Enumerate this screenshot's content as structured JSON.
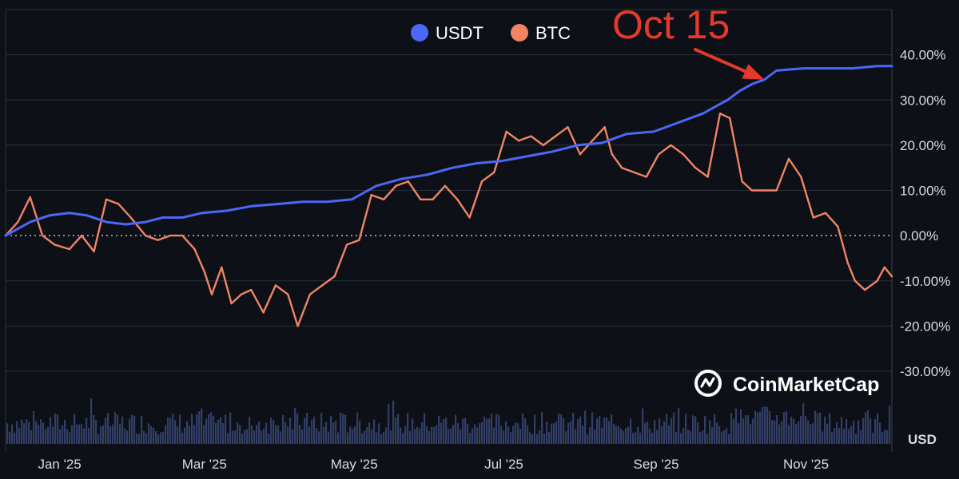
{
  "chart_data": {
    "type": "line",
    "x_ticks": [
      "Jan '25",
      "Mar '25",
      "May '25",
      "Jul '25",
      "Sep '25",
      "Nov '25"
    ],
    "y_ticks": [
      "40.00%",
      "30.00%",
      "20.00%",
      "10.00%",
      "0.00%",
      "-10.00%",
      "-20.00%",
      "-30.00%"
    ],
    "y_tick_values": [
      40,
      30,
      20,
      10,
      0,
      -10,
      -20,
      -30
    ],
    "ylim": [
      -33,
      50
    ],
    "xlim": [
      "2024-12-10",
      "2025-12-06"
    ],
    "unit_label": "USD",
    "grid": true,
    "legend_position": "top-center",
    "series": [
      {
        "name": "USDT",
        "color": "#4c67f5",
        "x": [
          "2024-12-10",
          "2024-12-20",
          "2024-12-28",
          "2025-01-05",
          "2025-01-12",
          "2025-01-20",
          "2025-01-28",
          "2025-02-05",
          "2025-02-12",
          "2025-02-20",
          "2025-02-28",
          "2025-03-10",
          "2025-03-20",
          "2025-03-31",
          "2025-04-10",
          "2025-04-20",
          "2025-04-30",
          "2025-05-10",
          "2025-05-20",
          "2025-05-31",
          "2025-06-10",
          "2025-06-20",
          "2025-06-30",
          "2025-07-10",
          "2025-07-20",
          "2025-07-31",
          "2025-08-10",
          "2025-08-20",
          "2025-08-31",
          "2025-09-10",
          "2025-09-20",
          "2025-09-30",
          "2025-10-05",
          "2025-10-10",
          "2025-10-15",
          "2025-10-20",
          "2025-10-31",
          "2025-11-10",
          "2025-11-20",
          "2025-11-30",
          "2025-12-06"
        ],
        "values": [
          0,
          3,
          4.5,
          5,
          4.5,
          3,
          2.5,
          3,
          4,
          4,
          5,
          5.5,
          6.5,
          7,
          7.5,
          7.5,
          8,
          11,
          12.5,
          13.5,
          15,
          16,
          16.5,
          17.5,
          18.5,
          20,
          20.5,
          22.5,
          23,
          25,
          27,
          30,
          32,
          33.5,
          34.5,
          36.5,
          37,
          37,
          37,
          37.5,
          37.5
        ]
      },
      {
        "name": "BTC",
        "color": "#f08465",
        "x": [
          "2024-12-10",
          "2024-12-15",
          "2024-12-20",
          "2024-12-25",
          "2024-12-30",
          "2025-01-05",
          "2025-01-10",
          "2025-01-15",
          "2025-01-20",
          "2025-01-25",
          "2025-01-30",
          "2025-02-05",
          "2025-02-10",
          "2025-02-15",
          "2025-02-20",
          "2025-02-25",
          "2025-03-01",
          "2025-03-04",
          "2025-03-08",
          "2025-03-12",
          "2025-03-16",
          "2025-03-20",
          "2025-03-25",
          "2025-03-30",
          "2025-04-04",
          "2025-04-08",
          "2025-04-13",
          "2025-04-18",
          "2025-04-23",
          "2025-04-28",
          "2025-05-03",
          "2025-05-08",
          "2025-05-13",
          "2025-05-18",
          "2025-05-23",
          "2025-05-28",
          "2025-06-02",
          "2025-06-07",
          "2025-06-12",
          "2025-06-17",
          "2025-06-22",
          "2025-06-27",
          "2025-07-02",
          "2025-07-07",
          "2025-07-12",
          "2025-07-17",
          "2025-07-22",
          "2025-07-27",
          "2025-08-01",
          "2025-08-06",
          "2025-08-11",
          "2025-08-14",
          "2025-08-18",
          "2025-08-23",
          "2025-08-28",
          "2025-09-02",
          "2025-09-07",
          "2025-09-12",
          "2025-09-17",
          "2025-09-22",
          "2025-09-27",
          "2025-10-01",
          "2025-10-06",
          "2025-10-10",
          "2025-10-15",
          "2025-10-20",
          "2025-10-25",
          "2025-10-30",
          "2025-11-04",
          "2025-11-09",
          "2025-11-14",
          "2025-11-18",
          "2025-11-21",
          "2025-11-25",
          "2025-11-30",
          "2025-12-03",
          "2025-12-06"
        ],
        "values": [
          0,
          3,
          8.5,
          0,
          -2,
          -3,
          0,
          -3.5,
          8,
          7,
          4,
          0,
          -1,
          0,
          0,
          -3,
          -8,
          -13,
          -7,
          -15,
          -13,
          -12,
          -17,
          -11,
          -13,
          -20,
          -13,
          -11,
          -9,
          -2,
          -1,
          9,
          8,
          11,
          12,
          8,
          8,
          11,
          8,
          4,
          12,
          14,
          23,
          21,
          22,
          20,
          22,
          24,
          18,
          21,
          24,
          18,
          15,
          14,
          13,
          18,
          20,
          18,
          15,
          13,
          27,
          26,
          12,
          10,
          10,
          10,
          17,
          13,
          4,
          5,
          2,
          -6,
          -10,
          -12,
          -10,
          -7,
          -9
        ]
      }
    ]
  },
  "annotation": {
    "label": "Oct 15",
    "target_x": "2025-10-15",
    "target_series": "USDT",
    "color": "#e5392b"
  },
  "brand": {
    "name": "CoinMarketCap"
  }
}
